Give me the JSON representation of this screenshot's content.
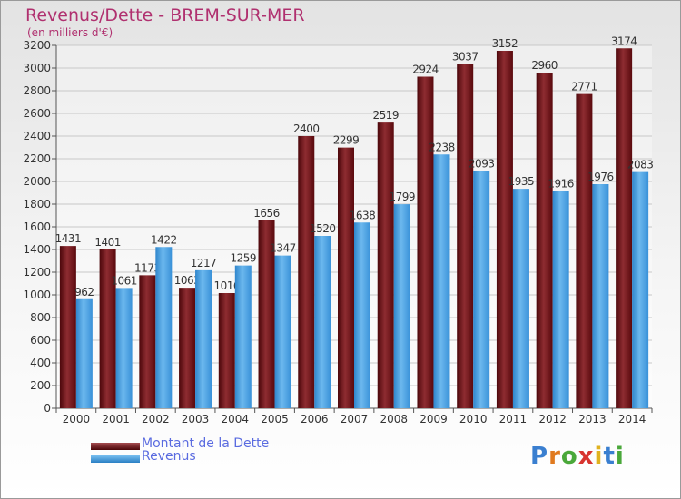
{
  "title": "Revenus/Dette - BREM-SUR-MER",
  "subtitle": "(en milliers d'€)",
  "colors": {
    "dette": "#6b1014",
    "revenus": "#3a94da",
    "title": "#b0306f",
    "legend_text": "#5a6be0"
  },
  "legend": [
    {
      "label": "Montant de la Dette",
      "color": "#6b1014"
    },
    {
      "label": "Revenus",
      "color": "#3a94da"
    }
  ],
  "logo_text": "Proxiti",
  "chart_data": {
    "type": "bar",
    "categories": [
      "2000",
      "2001",
      "2002",
      "2003",
      "2004",
      "2005",
      "2006",
      "2007",
      "2008",
      "2009",
      "2010",
      "2011",
      "2012",
      "2013",
      "2014"
    ],
    "series": [
      {
        "name": "Montant de la Dette",
        "values": [
          1431,
          1401,
          1173,
          1063,
          1016,
          1656,
          2400,
          2299,
          2519,
          2924,
          3037,
          3152,
          2960,
          2771,
          3174
        ]
      },
      {
        "name": "Revenus",
        "values": [
          962,
          1061,
          1422,
          1217,
          1259,
          1347,
          1520,
          1638,
          1799,
          2238,
          2093,
          1935,
          1916,
          1976,
          2083
        ]
      }
    ],
    "ylim": [
      0,
      3200
    ],
    "yticks": [
      0,
      200,
      400,
      600,
      800,
      1000,
      1200,
      1400,
      1600,
      1800,
      2000,
      2200,
      2400,
      2600,
      2800,
      3000,
      3200
    ],
    "grid": true,
    "legend_position": "bottom-left"
  }
}
